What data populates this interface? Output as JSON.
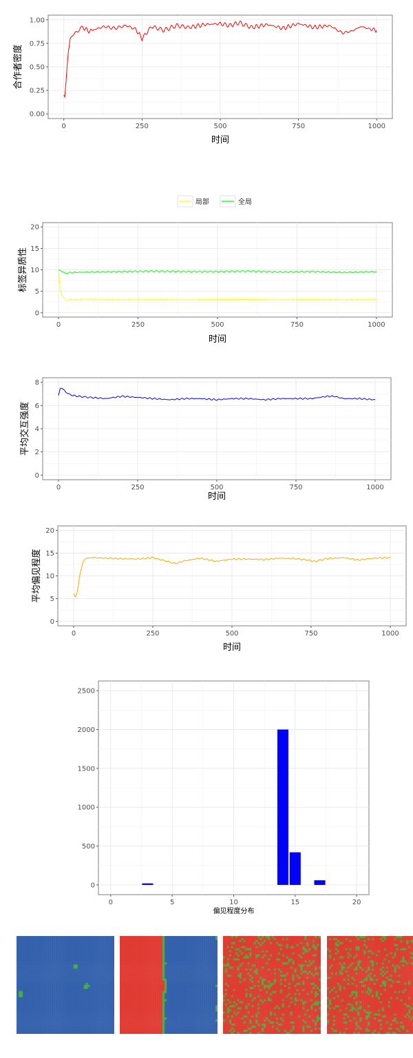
{
  "chart_data": [
    {
      "type": "line",
      "ylabel": "合作者密度",
      "xlabel": "时间",
      "xlim": [
        0,
        1000
      ],
      "ylim": [
        0,
        1
      ],
      "x_ticks": [
        "0",
        "250",
        "500",
        "750",
        "1000"
      ],
      "y_ticks": [
        "0.00",
        "0.25",
        "0.50",
        "0.75",
        "1.00"
      ],
      "grid": true,
      "series": [
        {
          "color": "#ff0000",
          "x": [
            0,
            3,
            6,
            10,
            15,
            20,
            30,
            40,
            50,
            60,
            80,
            100,
            130,
            160,
            200,
            230,
            250,
            280,
            320,
            360,
            400,
            450,
            500,
            530,
            560,
            600,
            650,
            700,
            750,
            800,
            850,
            890,
            920,
            950,
            980,
            1000
          ],
          "values": [
            0.2,
            0.18,
            0.3,
            0.5,
            0.68,
            0.78,
            0.84,
            0.88,
            0.9,
            0.92,
            0.88,
            0.9,
            0.93,
            0.91,
            0.94,
            0.9,
            0.8,
            0.93,
            0.89,
            0.94,
            0.92,
            0.95,
            0.96,
            0.94,
            0.97,
            0.92,
            0.95,
            0.91,
            0.96,
            0.92,
            0.94,
            0.86,
            0.88,
            0.93,
            0.9,
            0.89
          ]
        }
      ]
    },
    {
      "type": "line",
      "ylabel": "标签异质性",
      "xlabel": "时间",
      "xlim": [
        0,
        1000
      ],
      "ylim": [
        0,
        20
      ],
      "x_ticks": [
        "0",
        "250",
        "500",
        "750",
        "1000"
      ],
      "y_ticks": [
        "0",
        "5",
        "10",
        "15",
        "20"
      ],
      "grid": true,
      "legend_position": "top",
      "series": [
        {
          "name": "局部",
          "color": "#ffff00",
          "x": [
            0,
            5,
            10,
            15,
            25,
            50,
            100,
            200,
            300,
            400,
            500,
            600,
            700,
            800,
            900,
            1000
          ],
          "values": [
            10,
            5.5,
            4.2,
            3.5,
            3.0,
            3.0,
            3.1,
            3.0,
            3.1,
            3.0,
            3.1,
            3.1,
            3.0,
            3.1,
            3.0,
            3.1
          ]
        },
        {
          "name": "全局",
          "color": "#00ff00",
          "x": [
            0,
            10,
            20,
            30,
            50,
            100,
            200,
            300,
            400,
            500,
            600,
            700,
            800,
            900,
            1000
          ],
          "values": [
            10,
            9.6,
            9.2,
            9.3,
            9.4,
            9.5,
            9.6,
            9.7,
            9.6,
            9.6,
            9.7,
            9.5,
            9.6,
            9.4,
            9.6
          ]
        }
      ]
    },
    {
      "type": "line",
      "ylabel": "平均交互强度",
      "xlabel": "时间",
      "xlim": [
        0,
        1000
      ],
      "ylim": [
        0,
        8
      ],
      "x_ticks": [
        "0",
        "250",
        "500",
        "750",
        "1000"
      ],
      "y_ticks": [
        "0",
        "2",
        "4",
        "6",
        "8"
      ],
      "grid": true,
      "series": [
        {
          "color": "#0000ff",
          "x": [
            0,
            5,
            10,
            20,
            30,
            40,
            60,
            100,
            150,
            200,
            250,
            300,
            350,
            400,
            450,
            500,
            550,
            600,
            650,
            700,
            750,
            800,
            850,
            870,
            900,
            950,
            1000
          ],
          "values": [
            6.8,
            7.5,
            7.5,
            7.3,
            7.0,
            6.9,
            6.8,
            6.7,
            6.6,
            6.8,
            6.7,
            6.6,
            6.5,
            6.6,
            6.6,
            6.5,
            6.6,
            6.6,
            6.5,
            6.6,
            6.6,
            6.6,
            6.8,
            6.8,
            6.6,
            6.6,
            6.5
          ]
        }
      ]
    },
    {
      "type": "line",
      "ylabel": "平均偏见程度",
      "xlabel": "时间",
      "xlim": [
        0,
        1000
      ],
      "ylim": [
        0,
        20
      ],
      "x_ticks": [
        "0",
        "250",
        "500",
        "750",
        "1000"
      ],
      "y_ticks": [
        "0",
        "5",
        "10",
        "15",
        "20"
      ],
      "grid": true,
      "series": [
        {
          "color": "#ffa500",
          "x": [
            0,
            5,
            10,
            15,
            20,
            30,
            40,
            60,
            100,
            150,
            200,
            250,
            280,
            320,
            350,
            400,
            450,
            500,
            550,
            600,
            650,
            700,
            740,
            760,
            800,
            850,
            900,
            950,
            1000
          ],
          "values": [
            6,
            5.5,
            6.0,
            8.0,
            10.5,
            13.2,
            13.9,
            14.0,
            13.9,
            13.8,
            13.7,
            14.0,
            13.5,
            12.7,
            13.3,
            13.9,
            13.2,
            13.7,
            13.7,
            13.6,
            13.9,
            13.8,
            13.5,
            13.2,
            13.8,
            14.0,
            13.5,
            13.9,
            14.0
          ]
        }
      ]
    },
    {
      "type": "bar",
      "xlabel": "偏见程度分布",
      "xlim": [
        -1,
        21
      ],
      "ylim": [
        0,
        2500
      ],
      "x_ticks": [
        "0",
        "5",
        "10",
        "15",
        "20"
      ],
      "y_ticks": [
        "0",
        "500",
        "1000",
        "1500",
        "2000",
        "2500"
      ],
      "grid": true,
      "color": "#0000ff",
      "x": [
        3,
        14,
        15,
        17
      ],
      "values": [
        20,
        2000,
        420,
        60
      ]
    }
  ],
  "maps": {
    "colors": {
      "blue": "#3562ad",
      "red": "#e03c33",
      "green": "#4caf3c"
    },
    "panels": [
      {
        "name": "map-1"
      },
      {
        "name": "map-2"
      },
      {
        "name": "map-3"
      },
      {
        "name": "map-4"
      }
    ]
  }
}
